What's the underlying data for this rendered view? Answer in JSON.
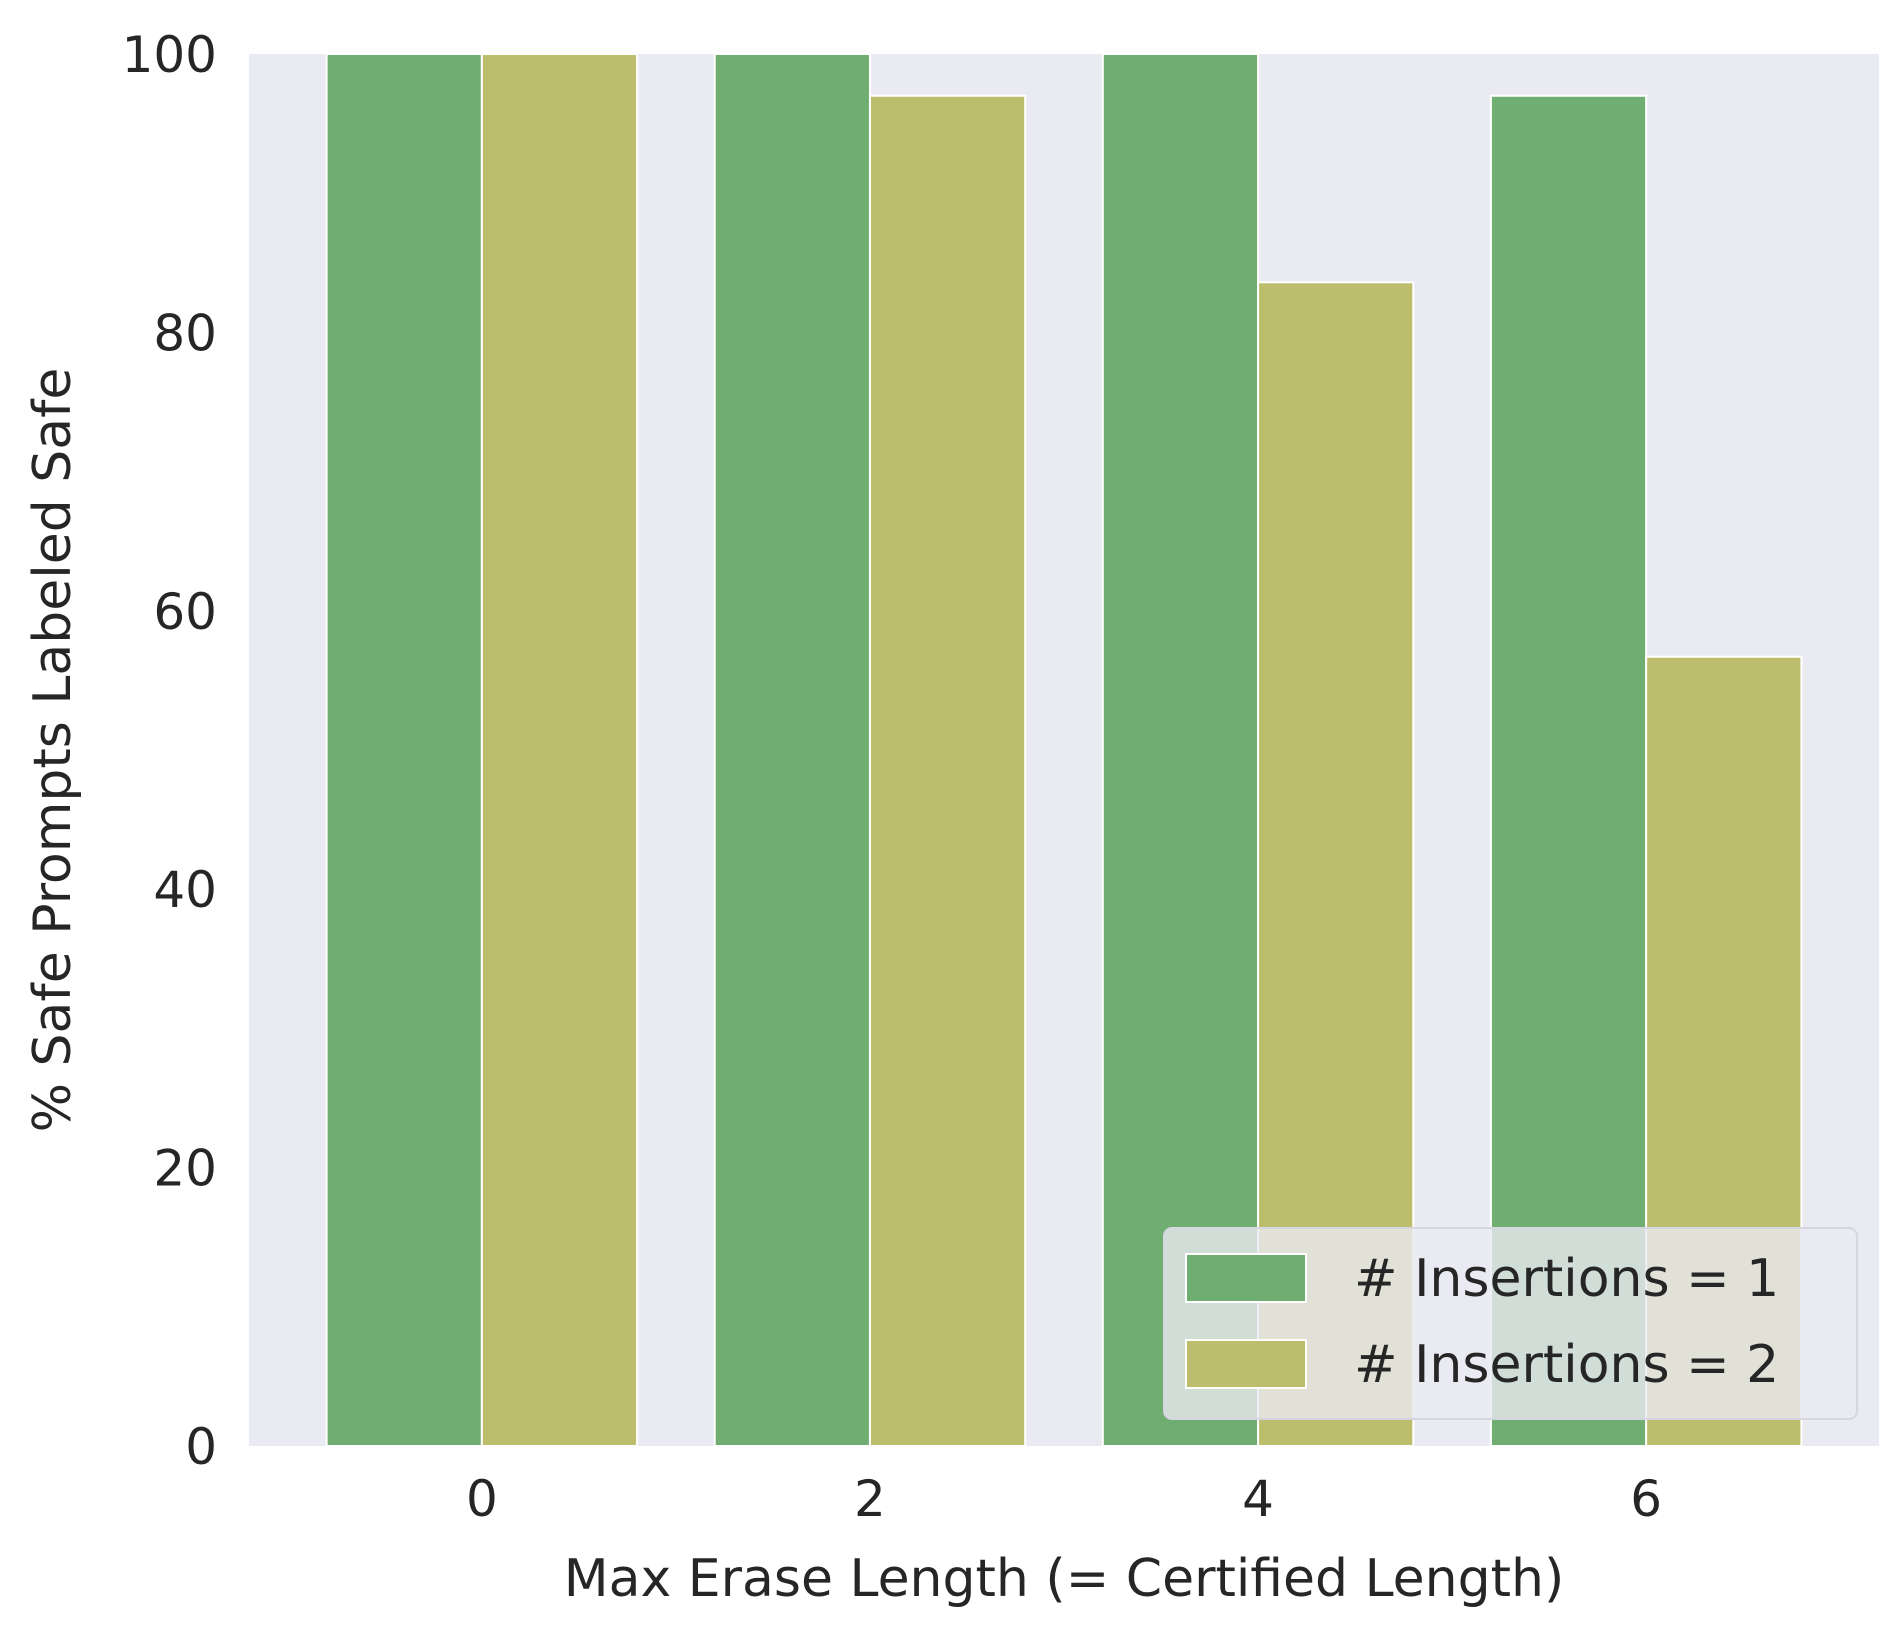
{
  "chart_data": {
    "type": "bar",
    "xlabel": "Max Erase Length (= Certified Length)",
    "ylabel": "% Safe Prompts Labeled Safe",
    "categories": [
      "0",
      "2",
      "4",
      "6"
    ],
    "series": [
      {
        "name": "# Insertions = 1",
        "values": [
          100,
          100,
          100,
          97
        ],
        "color": "#70ad70"
      },
      {
        "name": "# Insertions = 2",
        "values": [
          100,
          97,
          83.6,
          56.7
        ],
        "color": "#bdbe6d"
      }
    ],
    "ylim": [
      0,
      100
    ],
    "yticks": [
      0,
      20,
      40,
      60,
      80,
      100
    ],
    "grid": false,
    "legend_position": "bottom-right",
    "background_color": "#eaeaf2"
  }
}
